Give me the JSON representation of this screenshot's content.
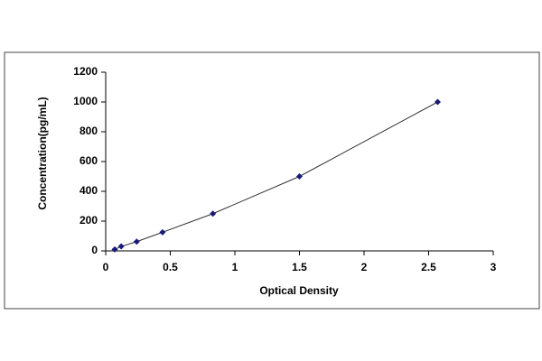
{
  "chart_data": {
    "type": "scatter",
    "x_label": "Optical Density",
    "y_label": "Concentration(pg/mL)",
    "x": [
      0.07,
      0.12,
      0.24,
      0.44,
      0.83,
      1.5,
      2.57
    ],
    "values": [
      10,
      30,
      62,
      125,
      250,
      500,
      1000
    ],
    "color": "#1a1a7a",
    "line_color": "#333333",
    "fit_line": true,
    "xlim": [
      0,
      3
    ],
    "xticks": [
      0,
      0.5,
      1,
      1.5,
      2,
      2.5,
      3
    ],
    "ylim": [
      0,
      1200
    ],
    "yticks": [
      0,
      200,
      400,
      600,
      800,
      1000,
      1200
    ]
  }
}
